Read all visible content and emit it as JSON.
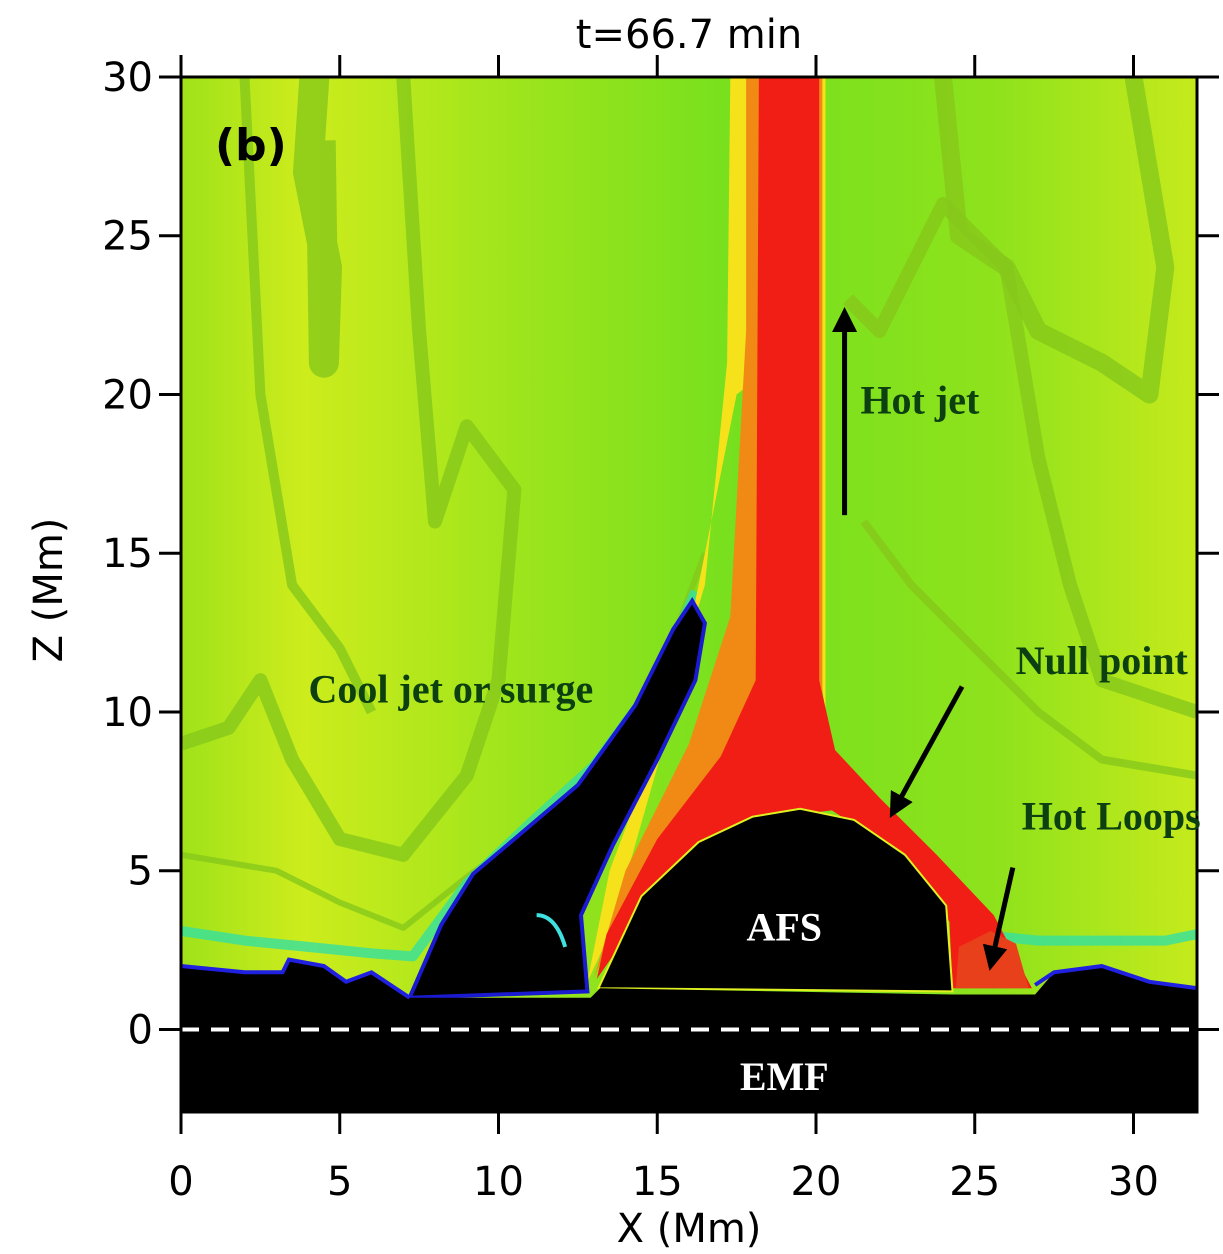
{
  "chart_data": {
    "type": "field",
    "title": "t=66.7 min",
    "panel_label": "(b)",
    "xlabel": "X (Mm)",
    "ylabel": "Z (Mm)",
    "xlim": [
      0,
      32
    ],
    "ylim": [
      -2.6,
      30
    ],
    "xticks": [
      0,
      5,
      10,
      15,
      20,
      25,
      30
    ],
    "yticks": [
      0,
      5,
      10,
      15,
      20,
      25,
      30
    ],
    "annotations": [
      "Hot jet",
      "Null point",
      "Hot Loops",
      "Cool jet or surge",
      "AFS",
      "EMF"
    ]
  }
}
